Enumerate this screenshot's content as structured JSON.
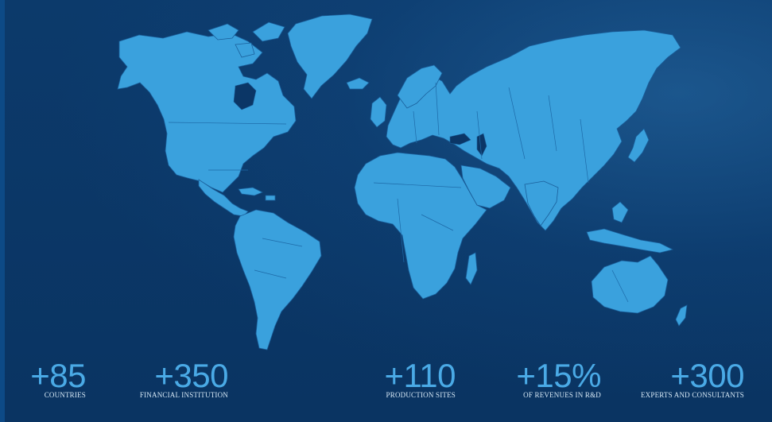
{
  "stats": [
    {
      "value": "+85",
      "label": "COUNTRIES"
    },
    {
      "value": "+350",
      "label": "FINANCIAL INSTITUTION"
    },
    {
      "value": "+110",
      "label": "PRODUCTION SITES"
    },
    {
      "value": "+15%",
      "label": "OF REVENUES IN R&D"
    },
    {
      "value": "+300",
      "label": "EXPERTS AND CONSULTANTS"
    }
  ],
  "colors": {
    "background": "#0a3565",
    "land": "#3aa1dd",
    "stat_number": "#4aaae6",
    "stat_label": "#d8eaf7"
  }
}
